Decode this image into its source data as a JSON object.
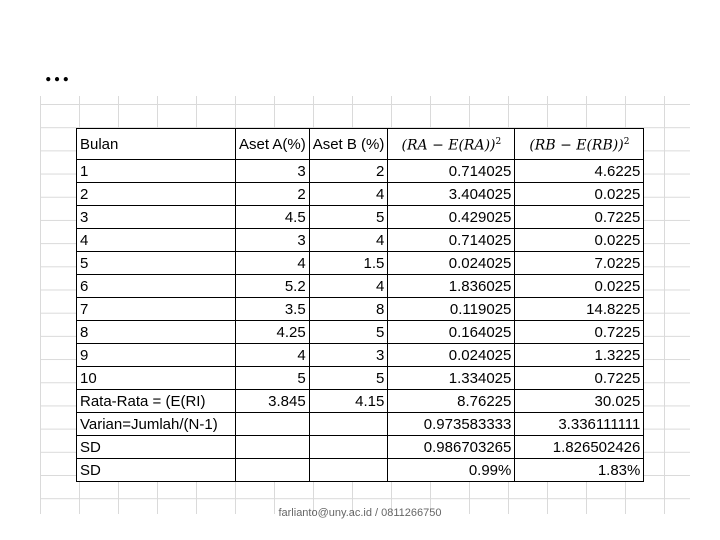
{
  "slide": {
    "ellipsis": "…",
    "footer": "farlianto@uny.ac.id / 0811266750"
  },
  "table": {
    "headers": [
      "Bulan",
      "Aset A(%)",
      "Aset B (%)",
      "(RA − E(RA))",
      "(RB − E(RB))"
    ],
    "header_exponent": "2",
    "rows": [
      [
        "1",
        "3",
        "2",
        "0.714025",
        "4.6225"
      ],
      [
        "2",
        "2",
        "4",
        "3.404025",
        "0.0225"
      ],
      [
        "3",
        "4.5",
        "5",
        "0.429025",
        "0.7225"
      ],
      [
        "4",
        "3",
        "4",
        "0.714025",
        "0.0225"
      ],
      [
        "5",
        "4",
        "1.5",
        "0.024025",
        "7.0225"
      ],
      [
        "6",
        "5.2",
        "4",
        "1.836025",
        "0.0225"
      ],
      [
        "7",
        "3.5",
        "8",
        "0.119025",
        "14.8225"
      ],
      [
        "8",
        "4.25",
        "5",
        "0.164025",
        "0.7225"
      ],
      [
        "9",
        "4",
        "3",
        "0.024025",
        "1.3225"
      ],
      [
        "10",
        "5",
        "5",
        "1.334025",
        "0.7225"
      ],
      [
        "Rata-Rata = (E(RI)",
        "3.845",
        "4.15",
        "8.76225",
        "30.025"
      ],
      [
        "Varian=Jumlah/(N-1)",
        "",
        "",
        "0.973583333",
        "3.336111111"
      ],
      [
        "SD",
        "",
        "",
        "0.986703265",
        "1.826502426"
      ],
      [
        "SD",
        "",
        "",
        "0.99%",
        "1.83%"
      ]
    ]
  }
}
